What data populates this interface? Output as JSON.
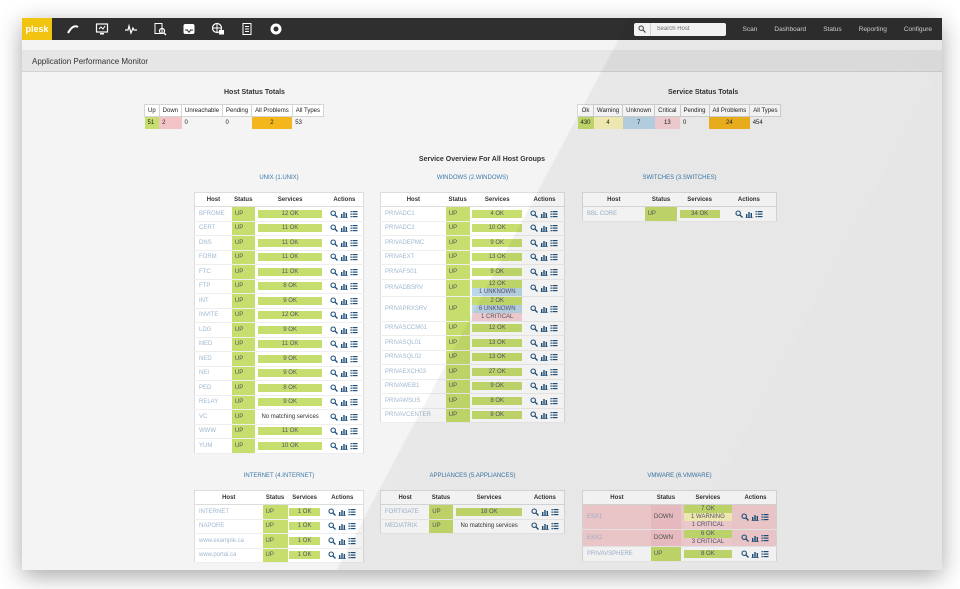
{
  "app": {
    "logo": "plesk",
    "nav_icons": [
      "speed-icon",
      "monitor-icon",
      "pulse-icon",
      "search-doc-icon",
      "inbox-icon",
      "globe-lock-icon",
      "documents-icon",
      "circle-icon"
    ],
    "search_placeholder": "Search Host",
    "nav_links": [
      "Scan",
      "Dashboard",
      "Status",
      "Reporting",
      "Configure"
    ]
  },
  "page_title": "Application Performance Monitor",
  "host_totals": {
    "title": "Host Status Totals",
    "headers": [
      "Up",
      "Down",
      "Unreachable",
      "Pending",
      "All Problems",
      "All Types"
    ],
    "values": [
      "51",
      "2",
      "0",
      "0",
      "2",
      "53"
    ]
  },
  "service_totals": {
    "title": "Service Status Totals",
    "headers": [
      "Ok",
      "Warning",
      "Unknown",
      "Critical",
      "Pending",
      "All Problems",
      "All Types"
    ],
    "values": [
      "430",
      "4",
      "7",
      "13",
      "0",
      "24",
      "454"
    ]
  },
  "overview_title": "Service Overview For All Host Groups",
  "columns": [
    "Host",
    "Status",
    "Services",
    "Actions"
  ],
  "groups": {
    "unix": {
      "title": "UNIX (1.UNIX)",
      "rows": [
        {
          "host": "BFROME",
          "status": "UP",
          "services": [
            "12 OK"
          ]
        },
        {
          "host": "CERT",
          "status": "UP",
          "services": [
            "11 OK"
          ]
        },
        {
          "host": "DNS",
          "status": "UP",
          "services": [
            "11 OK"
          ]
        },
        {
          "host": "FORM",
          "status": "UP",
          "services": [
            "11 OK"
          ]
        },
        {
          "host": "FTC",
          "status": "UP",
          "services": [
            "11 OK"
          ]
        },
        {
          "host": "FTP",
          "status": "UP",
          "services": [
            "8 OK"
          ]
        },
        {
          "host": "INT",
          "status": "UP",
          "services": [
            "9 OK"
          ]
        },
        {
          "host": "INVITE",
          "status": "UP",
          "services": [
            "12 OK"
          ]
        },
        {
          "host": "LDG",
          "status": "UP",
          "services": [
            "9 OK"
          ]
        },
        {
          "host": "MED",
          "status": "UP",
          "services": [
            "11 OK"
          ]
        },
        {
          "host": "NED",
          "status": "UP",
          "services": [
            "9 OK"
          ]
        },
        {
          "host": "NEI",
          "status": "UP",
          "services": [
            "9 OK"
          ]
        },
        {
          "host": "PED",
          "status": "UP",
          "services": [
            "8 OK"
          ]
        },
        {
          "host": "RELAY",
          "status": "UP",
          "services": [
            "9 OK"
          ]
        },
        {
          "host": "VC",
          "status": "UP",
          "services": [
            "No matching services"
          ]
        },
        {
          "host": "WWW",
          "status": "UP",
          "services": [
            "11 OK"
          ]
        },
        {
          "host": "YUM",
          "status": "UP",
          "services": [
            "10 OK"
          ]
        }
      ]
    },
    "windows": {
      "title": "WINDOWS (2.WINDOWS)",
      "rows": [
        {
          "host": "PRIVADC1",
          "status": "UP",
          "services": [
            "4 OK"
          ]
        },
        {
          "host": "PRIVADC2",
          "status": "UP",
          "services": [
            "10 OK"
          ]
        },
        {
          "host": "PRIVADEPMC",
          "status": "UP",
          "services": [
            "9 OK"
          ]
        },
        {
          "host": "PRIVAEXT",
          "status": "UP",
          "services": [
            "13 OK"
          ]
        },
        {
          "host": "PRIVAFS01",
          "status": "UP",
          "services": [
            "9 OK"
          ]
        },
        {
          "host": "PRIVADBSRV",
          "status": "UP",
          "services": [
            "12 OK",
            "1 UNKNOWN"
          ]
        },
        {
          "host": "PRIVAPRXSRV",
          "status": "UP",
          "services": [
            "2 OK",
            "6 UNKNOWN",
            "1 CRITICAL"
          ]
        },
        {
          "host": "PRIVASCCM01",
          "status": "UP",
          "services": [
            "12 OK"
          ]
        },
        {
          "host": "PRIVASQL01",
          "status": "UP",
          "services": [
            "13 OK"
          ]
        },
        {
          "host": "PRIVASQL02",
          "status": "UP",
          "services": [
            "13 OK"
          ]
        },
        {
          "host": "PRIVAEXCH03",
          "status": "UP",
          "services": [
            "27 OK"
          ]
        },
        {
          "host": "PRIVAWEB1",
          "status": "UP",
          "services": [
            "9 OK"
          ]
        },
        {
          "host": "PRIVAWSUS",
          "status": "UP",
          "services": [
            "8 OK"
          ]
        },
        {
          "host": "PRIVAVCENTER",
          "status": "UP",
          "services": [
            "8 OK"
          ]
        }
      ]
    },
    "switches": {
      "title": "SWITCHES (3.SWITCHES)",
      "rows": [
        {
          "host": "BBL CORE",
          "status": "UP",
          "services": [
            "34 OK"
          ]
        }
      ]
    },
    "internet": {
      "title": "INTERNET (4.INTERNET)",
      "rows": [
        {
          "host": "INTERNET",
          "status": "UP",
          "services": [
            "1 OK"
          ]
        },
        {
          "host": "NAPORE",
          "status": "UP",
          "services": [
            "1 OK"
          ]
        },
        {
          "host": "www.example.ca",
          "status": "UP",
          "services": [
            "1 OK"
          ]
        },
        {
          "host": "www.portal.ca",
          "status": "UP",
          "services": [
            "1 OK"
          ]
        }
      ]
    },
    "appliances": {
      "title": "APPLIANCES (5.APPLIANCES)",
      "rows": [
        {
          "host": "FORTIGATE",
          "status": "UP",
          "services": [
            "18 OK"
          ]
        },
        {
          "host": "MEDIATRIX",
          "status": "UP",
          "services": [
            "No matching services"
          ]
        }
      ]
    },
    "vmware": {
      "title": "VMWARE (6.VMWARE)",
      "rows": [
        {
          "host": "ESX1",
          "status": "DOWN",
          "services": [
            "7 OK",
            "1 WARNING",
            "1 CRITICAL"
          ]
        },
        {
          "host": "ESX2",
          "status": "DOWN",
          "services": [
            "6 OK",
            "3 CRITICAL"
          ]
        },
        {
          "host": "PRIVAVSPHERE",
          "status": "UP",
          "services": [
            "8 OK"
          ]
        }
      ]
    }
  },
  "colors": {
    "ok": "#c6de6e",
    "down": "#f2c4c8",
    "problems": "#f3b61c",
    "warning": "#fbf3b9",
    "unknown": "#bcd7ea",
    "nav_bg": "#2f2f2f",
    "logo": "#f1c40f"
  }
}
